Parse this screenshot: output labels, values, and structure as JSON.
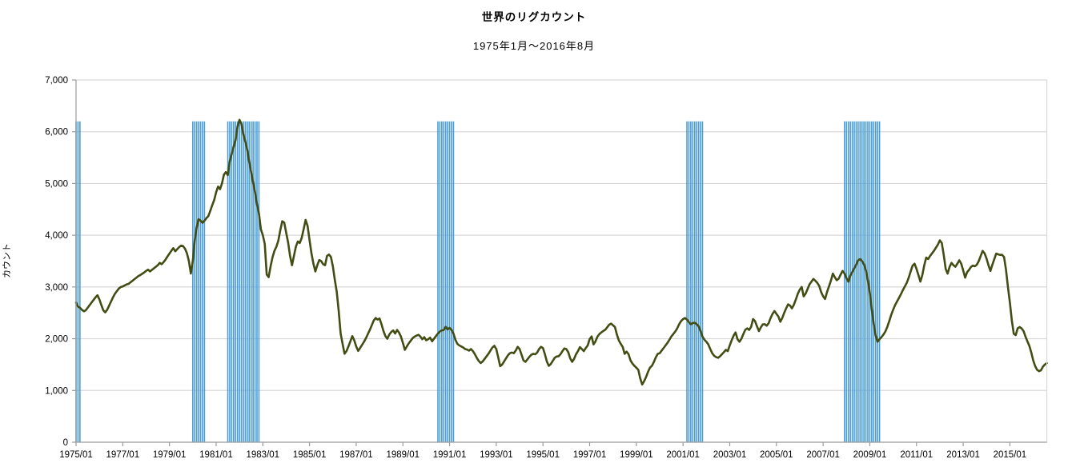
{
  "title": "世界のリグカウント",
  "subtitle": "1975年1月～2016年8月",
  "y_axis": {
    "label": "カウント",
    "min": 0,
    "max": 7000,
    "step": 1000,
    "tick_labels": [
      "0",
      "1,000",
      "2,000",
      "3,000",
      "4,000",
      "5,000",
      "6,000",
      "7,000"
    ]
  },
  "x_axis": {
    "tick_labels": [
      "1975/01",
      "1977/01",
      "1979/01",
      "1981/01",
      "1983/01",
      "1985/01",
      "1987/01",
      "1989/01",
      "1991/01",
      "1993/01",
      "1995/01",
      "1997/01",
      "1999/01",
      "2001/01",
      "2003/01",
      "2005/01",
      "2007/01",
      "2009/01",
      "2011/01",
      "2013/01",
      "2015/01"
    ]
  },
  "colors": {
    "line": "#424D14",
    "recession_bar": "#4A9CD6",
    "gridline": "#D9D9D9",
    "axis": "#9B9B9B",
    "text": "#000000",
    "background": "#FFFFFF"
  },
  "chart_data": {
    "type": "line",
    "title": "世界のリグカウント",
    "subtitle": "1975年1月～2016年8月",
    "ylabel": "カウント",
    "ylim": [
      0,
      7000
    ],
    "grid": true,
    "x_start": "1975/01",
    "x_end": "2016/08",
    "x_interval": "monthly",
    "series": [
      {
        "name": "世界のリグカウント",
        "values": [
          2700,
          2620,
          2600,
          2560,
          2530,
          2550,
          2600,
          2650,
          2700,
          2750,
          2800,
          2840,
          2760,
          2650,
          2550,
          2510,
          2560,
          2640,
          2720,
          2800,
          2870,
          2920,
          2970,
          3000,
          3010,
          3030,
          3050,
          3060,
          3090,
          3120,
          3150,
          3180,
          3210,
          3230,
          3255,
          3280,
          3310,
          3335,
          3300,
          3330,
          3360,
          3390,
          3420,
          3465,
          3440,
          3480,
          3530,
          3590,
          3645,
          3700,
          3750,
          3690,
          3730,
          3770,
          3800,
          3790,
          3740,
          3650,
          3500,
          3260,
          3500,
          3900,
          4150,
          4310,
          4280,
          4240,
          4280,
          4330,
          4370,
          4470,
          4580,
          4680,
          4830,
          4940,
          4890,
          5000,
          5170,
          5220,
          5160,
          5430,
          5570,
          5710,
          5840,
          6100,
          6230,
          6150,
          5950,
          5810,
          5650,
          5420,
          5220,
          5020,
          4830,
          4600,
          4420,
          4115,
          4000,
          3830,
          3240,
          3190,
          3400,
          3575,
          3700,
          3780,
          3900,
          4100,
          4270,
          4245,
          4050,
          3860,
          3600,
          3420,
          3600,
          3780,
          3880,
          3850,
          3950,
          4120,
          4296,
          4180,
          3910,
          3650,
          3450,
          3300,
          3420,
          3520,
          3500,
          3440,
          3420,
          3600,
          3626,
          3580,
          3400,
          3140,
          2905,
          2540,
          2100,
          1900,
          1710,
          1760,
          1850,
          1950,
          2050,
          1970,
          1850,
          1765,
          1820,
          1880,
          1940,
          2010,
          2090,
          2170,
          2260,
          2350,
          2400,
          2370,
          2390,
          2280,
          2150,
          2050,
          2000,
          2080,
          2130,
          2160,
          2100,
          2170,
          2120,
          2040,
          1920,
          1785,
          1850,
          1910,
          1960,
          2010,
          2040,
          2060,
          2075,
          2040,
          1990,
          2030,
          1970,
          1990,
          2020,
          1950,
          2000,
          2050,
          2100,
          2140,
          2160,
          2170,
          2230,
          2180,
          2210,
          2170,
          2100,
          1980,
          1900,
          1870,
          1850,
          1830,
          1800,
          1790,
          1770,
          1800,
          1760,
          1700,
          1630,
          1570,
          1530,
          1560,
          1610,
          1660,
          1710,
          1770,
          1830,
          1863,
          1800,
          1640,
          1470,
          1500,
          1560,
          1620,
          1680,
          1720,
          1734,
          1720,
          1770,
          1843,
          1800,
          1690,
          1580,
          1553,
          1600,
          1650,
          1690,
          1708,
          1700,
          1730,
          1800,
          1843,
          1820,
          1700,
          1560,
          1476,
          1510,
          1570,
          1630,
          1657,
          1660,
          1700,
          1760,
          1812,
          1800,
          1740,
          1620,
          1553,
          1610,
          1700,
          1760,
          1838,
          1800,
          1760,
          1820,
          1870,
          1993,
          2044,
          1889,
          1950,
          2040,
          2090,
          2122,
          2150,
          2173,
          2220,
          2270,
          2292,
          2260,
          2225,
          2080,
          1967,
          1900,
          1840,
          1708,
          1750,
          1700,
          1580,
          1520,
          1476,
          1440,
          1399,
          1230,
          1115,
          1180,
          1260,
          1360,
          1440,
          1476,
          1550,
          1640,
          1708,
          1720,
          1770,
          1820,
          1870,
          1920,
          1980,
          2044,
          2090,
          2140,
          2200,
          2280,
          2340,
          2380,
          2400,
          2370,
          2320,
          2280,
          2302,
          2310,
          2280,
          2240,
          2150,
          2040,
          1980,
          1941,
          1890,
          1800,
          1720,
          1670,
          1645,
          1631,
          1660,
          1700,
          1740,
          1786,
          1761,
          1870,
          1970,
          2060,
          2122,
          1990,
          1941,
          2000,
          2090,
          2173,
          2200,
          2170,
          2230,
          2380,
          2340,
          2240,
          2148,
          2220,
          2277,
          2280,
          2251,
          2300,
          2400,
          2480,
          2535,
          2480,
          2430,
          2328,
          2400,
          2500,
          2587,
          2664,
          2640,
          2587,
          2660,
          2760,
          2870,
          2948,
          3000,
          2819,
          2870,
          2960,
          3050,
          3103,
          3155,
          3120,
          3080,
          3020,
          2900,
          2820,
          2768,
          2900,
          3010,
          3120,
          3258,
          3190,
          3130,
          3160,
          3240,
          3310,
          3260,
          3170,
          3100,
          3220,
          3290,
          3360,
          3430,
          3515,
          3540,
          3500,
          3440,
          3320,
          3130,
          2890,
          2570,
          2290,
          2060,
          1941,
          1990,
          2030,
          2080,
          2140,
          2230,
          2340,
          2460,
          2560,
          2650,
          2720,
          2790,
          2860,
          2940,
          3010,
          3080,
          3180,
          3300,
          3412,
          3450,
          3350,
          3230,
          3103,
          3230,
          3420,
          3568,
          3540,
          3600,
          3650,
          3700,
          3760,
          3820,
          3900,
          3850,
          3620,
          3350,
          3258,
          3387,
          3465,
          3420,
          3390,
          3450,
          3516,
          3450,
          3320,
          3180,
          3284,
          3330,
          3387,
          3413,
          3400,
          3430,
          3500,
          3600,
          3697,
          3650,
          3550,
          3420,
          3310,
          3430,
          3540,
          3645,
          3630,
          3620,
          3620,
          3580,
          3335,
          3000,
          2700,
          2354,
          2096,
          2070,
          2199,
          2225,
          2200,
          2150,
          2044,
          1950,
          1863,
          1735,
          1580,
          1470,
          1399,
          1373,
          1390,
          1460,
          1502,
          1528
        ]
      }
    ],
    "recession_bands": [
      {
        "from": "1975/01",
        "to": "1975/03"
      },
      {
        "from": "1980/01",
        "to": "1980/07"
      },
      {
        "from": "1981/07",
        "to": "1982/11"
      },
      {
        "from": "1990/07",
        "to": "1991/03"
      },
      {
        "from": "2001/03",
        "to": "2001/11"
      },
      {
        "from": "2007/12",
        "to": "2009/06"
      }
    ],
    "recession_band_top": 6200,
    "legend": false
  }
}
